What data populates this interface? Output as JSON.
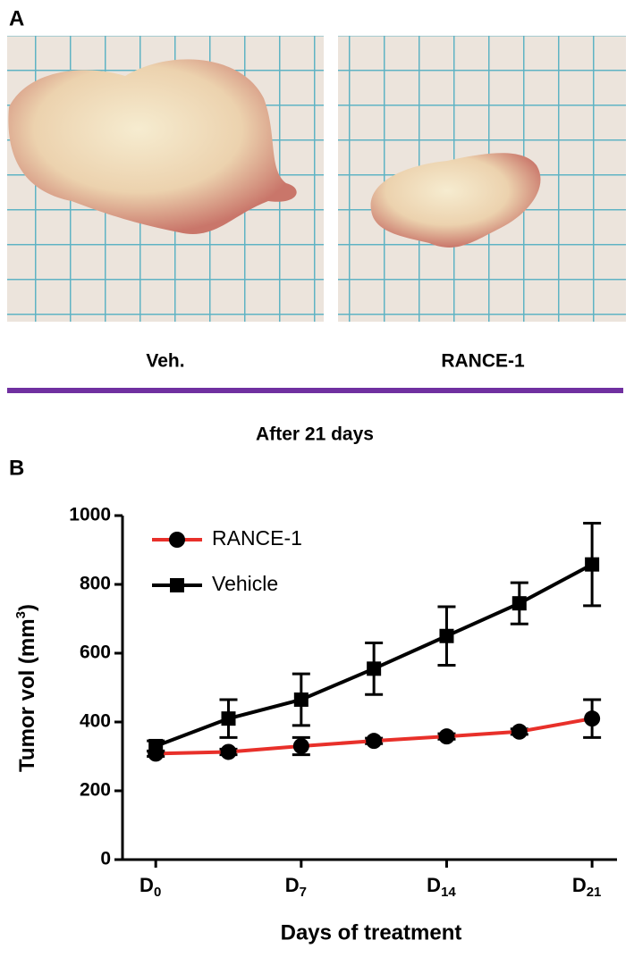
{
  "panel_a": {
    "label": "A",
    "captions": [
      "Veh.",
      "RANCE-1"
    ],
    "note": "After 21 days"
  },
  "chart_data": {
    "type": "line",
    "panel_label": "B",
    "x_label": "Days  of treatment",
    "y_label": {
      "text": "Tumor vol (mm",
      "sup": "3",
      "end": ")"
    },
    "x": [
      0,
      3.5,
      7,
      10.5,
      14,
      17.5,
      21
    ],
    "xlim": [
      -1.6,
      22.2
    ],
    "xticks": [
      {
        "value": 0,
        "label": "D",
        "sub": "0"
      },
      {
        "value": 7,
        "label": "D",
        "sub": "7"
      },
      {
        "value": 14,
        "label": "D",
        "sub": "14"
      },
      {
        "value": 21,
        "label": "D",
        "sub": "21"
      }
    ],
    "ylim": [
      0,
      1000
    ],
    "yticks": [
      0,
      200,
      400,
      600,
      800,
      1000
    ],
    "legend": "top-left",
    "series": [
      {
        "name": "RANCE-1",
        "color": "#e8302a",
        "marker": "circle",
        "values": [
          308,
          313,
          330,
          345,
          358,
          372,
          410
        ],
        "errors": [
          8,
          8,
          25,
          8,
          8,
          8,
          55
        ]
      },
      {
        "name": "Vehicle",
        "color": "#000000",
        "marker": "square",
        "values": [
          330,
          410,
          465,
          555,
          650,
          745,
          858
        ],
        "errors": [
          15,
          55,
          75,
          75,
          85,
          60,
          120
        ]
      }
    ]
  }
}
